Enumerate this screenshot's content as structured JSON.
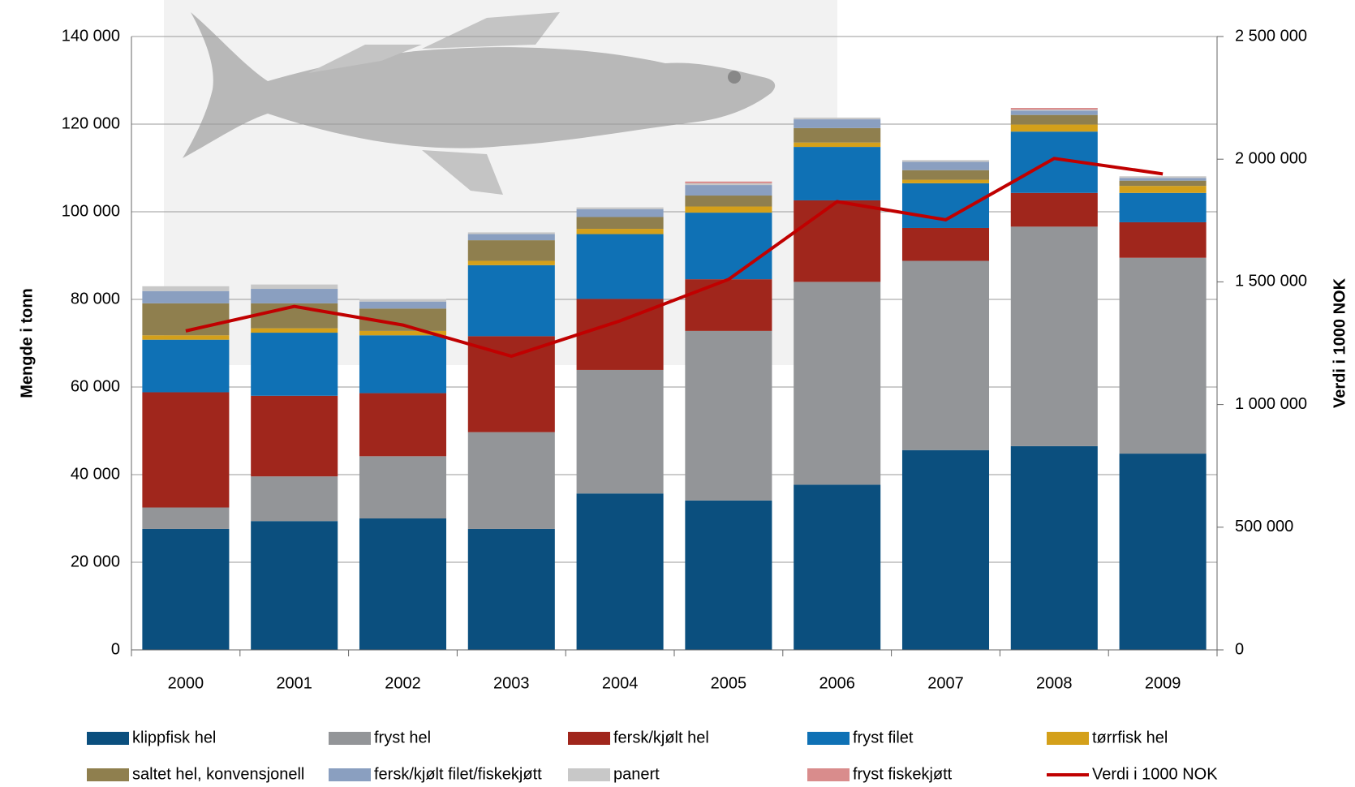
{
  "chart_data": {
    "type": "bar",
    "stacked": true,
    "y_label": "Mengde i tonn",
    "y2_label": "Verdi i 1000 NOK",
    "categories": [
      "2000",
      "2001",
      "2002",
      "2003",
      "2004",
      "2005",
      "2006",
      "2007",
      "2008",
      "2009"
    ],
    "ylim": [
      0,
      140000
    ],
    "yticks": [
      0,
      {
        "value": 20000,
        "label": "20 000"
      },
      {
        "value": 40000,
        "label": "40 000"
      },
      {
        "value": 60000,
        "label": "60 000"
      },
      {
        "value": 80000,
        "label": "80 000"
      },
      {
        "value": 100000,
        "label": "100 000"
      },
      {
        "value": 120000,
        "label": "120 000"
      },
      {
        "value": 140000,
        "label": "140 000"
      }
    ],
    "y2lim": [
      0,
      2500000
    ],
    "y2ticks": [
      0,
      {
        "value": 500000,
        "label": "500 000"
      },
      {
        "value": 1000000,
        "label": "1 000 000"
      },
      {
        "value": 1500000,
        "label": "1 500 000"
      },
      {
        "value": 2000000,
        "label": "2 000 000"
      },
      {
        "value": 2500000,
        "label": "2 500 000"
      }
    ],
    "grid": true,
    "legend": "bottom",
    "series": [
      {
        "name": "klippfisk hel",
        "color": "#0b4f7e",
        "values": [
          27600,
          29400,
          30000,
          27600,
          35700,
          34100,
          37700,
          45600,
          46500,
          44800
        ]
      },
      {
        "name": "fryst hel",
        "color": "#939598",
        "values": [
          4900,
          10200,
          14200,
          22100,
          28200,
          38700,
          46300,
          43200,
          50100,
          44700
        ]
      },
      {
        "name": "fersk/kjølt hel",
        "color": "#a0261c",
        "values": [
          26300,
          18400,
          14400,
          21900,
          16200,
          11800,
          18600,
          7500,
          7700,
          8100
        ]
      },
      {
        "name": "fryst filet",
        "color": "#0f71b5",
        "values": [
          12000,
          14400,
          13200,
          16200,
          14800,
          15200,
          12200,
          10200,
          14000,
          6700
        ]
      },
      {
        "name": "tørrfisk hel",
        "color": "#d4a01a",
        "values": [
          1000,
          1000,
          1000,
          1000,
          1200,
          1400,
          1000,
          800,
          1600,
          1600
        ]
      },
      {
        "name": "saltet hel, konvensjonell",
        "color": "#8f7f4e",
        "values": [
          7300,
          5700,
          5100,
          4700,
          2700,
          2500,
          3300,
          2200,
          2200,
          1200
        ]
      },
      {
        "name": "fersk/kjølt filet/fiskekjøtt",
        "color": "#8a9fc0",
        "values": [
          2800,
          3300,
          1600,
          1400,
          1800,
          2400,
          2000,
          1900,
          1000,
          600
        ]
      },
      {
        "name": "panert",
        "color": "#c8c8c8",
        "values": [
          1100,
          1000,
          600,
          400,
          400,
          400,
          400,
          400,
          200,
          400
        ]
      },
      {
        "name": "fryst fiskekjøtt",
        "color": "#d98c8c",
        "values": [
          0,
          0,
          0,
          0,
          0,
          400,
          0,
          0,
          400,
          0
        ]
      },
      {
        "name": "Verdi i 1000 NOK",
        "color": "#c00000",
        "type": "line",
        "axis": "y2",
        "values": [
          1300000,
          1400000,
          1324000,
          1197000,
          1341000,
          1510000,
          1827000,
          1753000,
          2003000,
          1940000
        ]
      }
    ]
  }
}
